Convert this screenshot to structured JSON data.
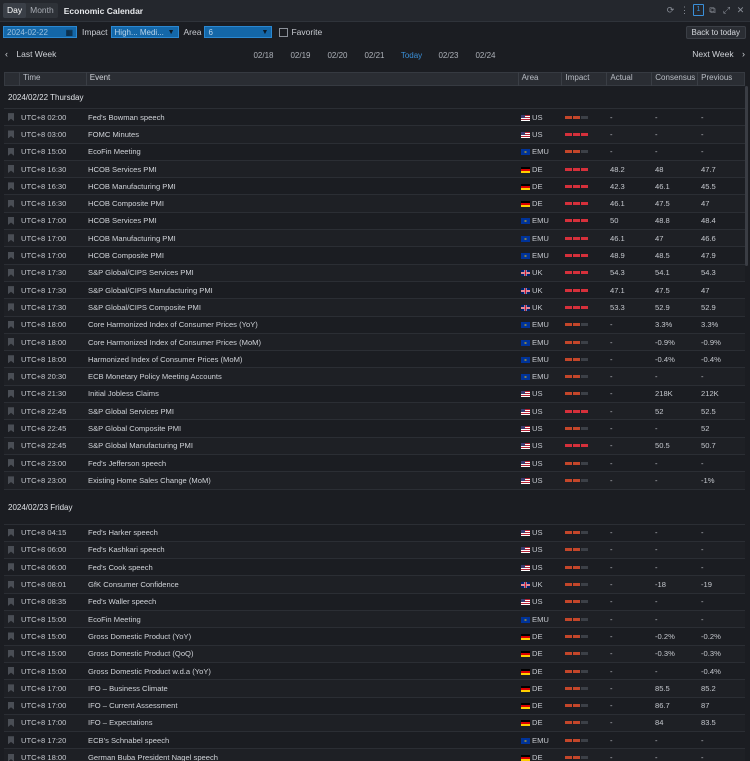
{
  "titlebar": {
    "tabs": [
      "Day",
      "Month"
    ],
    "active_tab": "Day",
    "title": "Economic Calendar"
  },
  "filters": {
    "date": "2024-02-22",
    "impact_label": "Impact",
    "impact_value": "High... Medi...",
    "area_label": "Area",
    "area_value": "6",
    "favorite_label": "Favorite",
    "back_today": "Back to today"
  },
  "weeknav": {
    "prev": "Last Week",
    "next": "Next Week",
    "days": [
      "02/18",
      "02/19",
      "02/20",
      "02/21",
      "Today",
      "02/23",
      "02/24"
    ]
  },
  "table": {
    "headers": {
      "time": "Time",
      "event": "Event",
      "area": "Area",
      "impact": "Impact",
      "actual": "Actual",
      "consensus": "Consensus",
      "previous": "Previous"
    },
    "days": [
      {
        "label": "2024/02/22 Thursday",
        "rows": [
          {
            "time": "UTC+8 02:00",
            "event": "Fed's Bowman speech",
            "area": "US",
            "impact": 2,
            "actual": "-",
            "consensus": "-",
            "previous": "-"
          },
          {
            "time": "UTC+8 03:00",
            "event": "FOMC Minutes",
            "area": "US",
            "impact": 3,
            "actual": "-",
            "consensus": "-",
            "previous": "-"
          },
          {
            "time": "UTC+8 15:00",
            "event": "EcoFin Meeting",
            "area": "EMU",
            "impact": 2,
            "actual": "-",
            "consensus": "-",
            "previous": "-"
          },
          {
            "time": "UTC+8 16:30",
            "event": "HCOB Services PMI",
            "area": "DE",
            "impact": 3,
            "actual": "48.2",
            "consensus": "48",
            "previous": "47.7"
          },
          {
            "time": "UTC+8 16:30",
            "event": "HCOB Manufacturing PMI",
            "area": "DE",
            "impact": 3,
            "actual": "42.3",
            "consensus": "46.1",
            "previous": "45.5"
          },
          {
            "time": "UTC+8 16:30",
            "event": "HCOB Composite PMI",
            "area": "DE",
            "impact": 3,
            "actual": "46.1",
            "consensus": "47.5",
            "previous": "47"
          },
          {
            "time": "UTC+8 17:00",
            "event": "HCOB Services PMI",
            "area": "EMU",
            "impact": 3,
            "actual": "50",
            "consensus": "48.8",
            "previous": "48.4"
          },
          {
            "time": "UTC+8 17:00",
            "event": "HCOB Manufacturing PMI",
            "area": "EMU",
            "impact": 3,
            "actual": "46.1",
            "consensus": "47",
            "previous": "46.6"
          },
          {
            "time": "UTC+8 17:00",
            "event": "HCOB Composite PMI",
            "area": "EMU",
            "impact": 3,
            "actual": "48.9",
            "consensus": "48.5",
            "previous": "47.9"
          },
          {
            "time": "UTC+8 17:30",
            "event": "S&P Global/CIPS Services PMI",
            "area": "UK",
            "impact": 3,
            "actual": "54.3",
            "consensus": "54.1",
            "previous": "54.3"
          },
          {
            "time": "UTC+8 17:30",
            "event": "S&P Global/CIPS Manufacturing PMI",
            "area": "UK",
            "impact": 3,
            "actual": "47.1",
            "consensus": "47.5",
            "previous": "47"
          },
          {
            "time": "UTC+8 17:30",
            "event": "S&P Global/CIPS Composite PMI",
            "area": "UK",
            "impact": 3,
            "actual": "53.3",
            "consensus": "52.9",
            "previous": "52.9"
          },
          {
            "time": "UTC+8 18:00",
            "event": "Core Harmonized Index of Consumer Prices (YoY)",
            "area": "EMU",
            "impact": 2,
            "actual": "-",
            "consensus": "3.3%",
            "previous": "3.3%"
          },
          {
            "time": "UTC+8 18:00",
            "event": "Core Harmonized Index of Consumer Prices (MoM)",
            "area": "EMU",
            "impact": 2,
            "actual": "-",
            "consensus": "-0.9%",
            "previous": "-0.9%"
          },
          {
            "time": "UTC+8 18:00",
            "event": "Harmonized Index of Consumer Prices (MoM)",
            "area": "EMU",
            "impact": 2,
            "actual": "-",
            "consensus": "-0.4%",
            "previous": "-0.4%"
          },
          {
            "time": "UTC+8 20:30",
            "event": "ECB Monetary Policy Meeting Accounts",
            "area": "EMU",
            "impact": 2,
            "actual": "-",
            "consensus": "-",
            "previous": "-"
          },
          {
            "time": "UTC+8 21:30",
            "event": "Initial Jobless Claims",
            "area": "US",
            "impact": 2,
            "actual": "-",
            "consensus": "218K",
            "previous": "212K"
          },
          {
            "time": "UTC+8 22:45",
            "event": "S&P Global Services PMI",
            "area": "US",
            "impact": 3,
            "actual": "-",
            "consensus": "52",
            "previous": "52.5"
          },
          {
            "time": "UTC+8 22:45",
            "event": "S&P Global Composite PMI",
            "area": "US",
            "impact": 2,
            "actual": "-",
            "consensus": "-",
            "previous": "52"
          },
          {
            "time": "UTC+8 22:45",
            "event": "S&P Global Manufacturing PMI",
            "area": "US",
            "impact": 3,
            "actual": "-",
            "consensus": "50.5",
            "previous": "50.7"
          },
          {
            "time": "UTC+8 23:00",
            "event": "Fed's Jefferson speech",
            "area": "US",
            "impact": 2,
            "actual": "-",
            "consensus": "-",
            "previous": "-"
          },
          {
            "time": "UTC+8 23:00",
            "event": "Existing Home Sales Change (MoM)",
            "area": "US",
            "impact": 2,
            "actual": "-",
            "consensus": "-",
            "previous": "-1%"
          }
        ]
      },
      {
        "label": "2024/02/23 Friday",
        "rows": [
          {
            "time": "UTC+8 04:15",
            "event": "Fed's Harker speech",
            "area": "US",
            "impact": 2,
            "actual": "-",
            "consensus": "-",
            "previous": "-"
          },
          {
            "time": "UTC+8 06:00",
            "event": "Fed's Kashkari speech",
            "area": "US",
            "impact": 2,
            "actual": "-",
            "consensus": "-",
            "previous": "-"
          },
          {
            "time": "UTC+8 06:00",
            "event": "Fed's Cook speech",
            "area": "US",
            "impact": 2,
            "actual": "-",
            "consensus": "-",
            "previous": "-"
          },
          {
            "time": "UTC+8 08:01",
            "event": "GfK Consumer Confidence",
            "area": "UK",
            "impact": 2,
            "actual": "-",
            "consensus": "-18",
            "previous": "-19"
          },
          {
            "time": "UTC+8 08:35",
            "event": "Fed's Waller speech",
            "area": "US",
            "impact": 2,
            "actual": "-",
            "consensus": "-",
            "previous": "-"
          },
          {
            "time": "UTC+8 15:00",
            "event": "EcoFin Meeting",
            "area": "EMU",
            "impact": 2,
            "actual": "-",
            "consensus": "-",
            "previous": "-"
          },
          {
            "time": "UTC+8 15:00",
            "event": "Gross Domestic Product (YoY)",
            "area": "DE",
            "impact": 2,
            "actual": "-",
            "consensus": "-0.2%",
            "previous": "-0.2%"
          },
          {
            "time": "UTC+8 15:00",
            "event": "Gross Domestic Product (QoQ)",
            "area": "DE",
            "impact": 2,
            "actual": "-",
            "consensus": "-0.3%",
            "previous": "-0.3%"
          },
          {
            "time": "UTC+8 15:00",
            "event": "Gross Domestic Product w.d.a (YoY)",
            "area": "DE",
            "impact": 2,
            "actual": "-",
            "consensus": "-",
            "previous": "-0.4%"
          },
          {
            "time": "UTC+8 17:00",
            "event": "IFO – Business Climate",
            "area": "DE",
            "impact": 2,
            "actual": "-",
            "consensus": "85.5",
            "previous": "85.2"
          },
          {
            "time": "UTC+8 17:00",
            "event": "IFO – Current Assessment",
            "area": "DE",
            "impact": 2,
            "actual": "-",
            "consensus": "86.7",
            "previous": "87"
          },
          {
            "time": "UTC+8 17:00",
            "event": "IFO – Expectations",
            "area": "DE",
            "impact": 2,
            "actual": "-",
            "consensus": "84",
            "previous": "83.5"
          },
          {
            "time": "UTC+8 17:20",
            "event": "ECB's Schnabel speech",
            "area": "EMU",
            "impact": 2,
            "actual": "-",
            "consensus": "-",
            "previous": "-"
          },
          {
            "time": "UTC+8 18:00",
            "event": "German Buba President Nagel speech",
            "area": "DE",
            "impact": 2,
            "actual": "-",
            "consensus": "-",
            "previous": "-"
          }
        ]
      }
    ]
  },
  "colors": {
    "accent": "#3a8fd8",
    "impact_medium": "#c4462a",
    "impact_high": "#d6303b",
    "background": "#1b1d22"
  }
}
